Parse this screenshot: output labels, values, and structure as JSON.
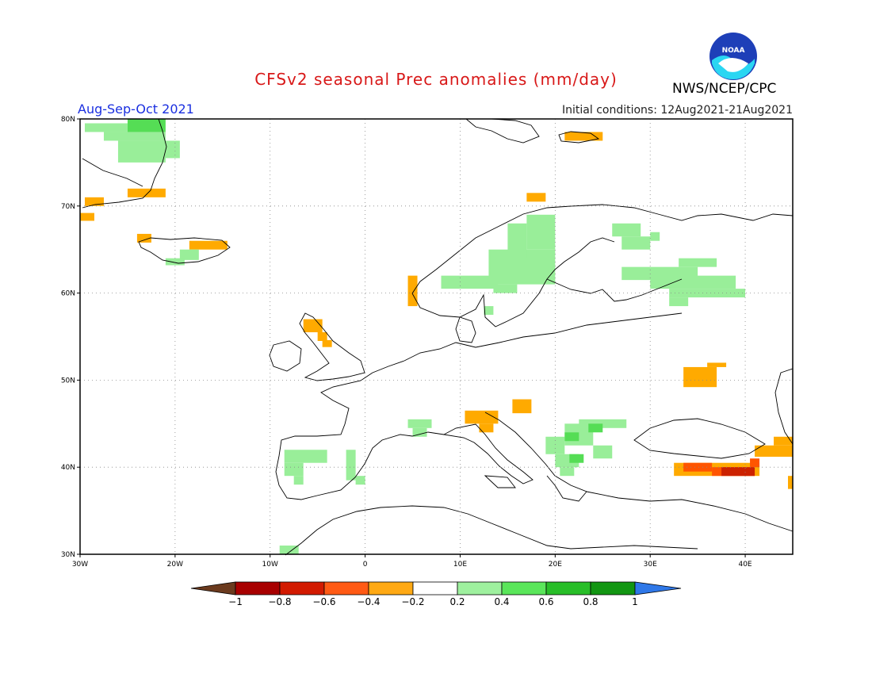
{
  "header": {
    "title": "CFSv2 seasonal Prec anomalies (mm/day)",
    "period": "Aug-Sep-Oct 2021",
    "initial_conditions": "Initial conditions: 12Aug2021-21Aug2021",
    "agency": "NWS/NCEP/CPC",
    "logo_text": "NOAA"
  },
  "map": {
    "projection": "lat-lon",
    "lon_range": [
      -30,
      45
    ],
    "lat_range": [
      30,
      80
    ],
    "lon_ticks": [
      {
        "value": -30,
        "label": "30W"
      },
      {
        "value": -20,
        "label": "20W"
      },
      {
        "value": -10,
        "label": "10W"
      },
      {
        "value": 0,
        "label": "0"
      },
      {
        "value": 10,
        "label": "10E"
      },
      {
        "value": 20,
        "label": "20E"
      },
      {
        "value": 30,
        "label": "30E"
      },
      {
        "value": 40,
        "label": "40E"
      }
    ],
    "lat_ticks": [
      {
        "value": 30,
        "label": "30N"
      },
      {
        "value": 40,
        "label": "40N"
      },
      {
        "value": 50,
        "label": "50N"
      },
      {
        "value": 60,
        "label": "60N"
      },
      {
        "value": 70,
        "label": "70N"
      },
      {
        "value": 80,
        "label": "80N"
      }
    ],
    "grid": "dotted",
    "anomaly_patches": [
      {
        "level": "+0.2",
        "color": "#99ee99",
        "lon": [
          -29.5,
          -25
        ],
        "lat": [
          78.5,
          79.5
        ]
      },
      {
        "level": "+0.4",
        "color": "#55dd55",
        "lon": [
          -25,
          -21
        ],
        "lat": [
          78.5,
          80
        ]
      },
      {
        "level": "+0.2",
        "color": "#99ee99",
        "lon": [
          -27.5,
          -21
        ],
        "lat": [
          77.5,
          78.5
        ]
      },
      {
        "level": "+0.2",
        "color": "#99ee99",
        "lon": [
          -26,
          -21
        ],
        "lat": [
          75,
          77.5
        ]
      },
      {
        "level": "+0.2",
        "color": "#99ee99",
        "lon": [
          -22,
          -19.5
        ],
        "lat": [
          75.5,
          77.5
        ]
      },
      {
        "level": "-0.2",
        "color": "#ffaa00",
        "lon": [
          -29.5,
          -27.5
        ],
        "lat": [
          70,
          71
        ]
      },
      {
        "level": "-0.2",
        "color": "#ffaa00",
        "lon": [
          -25,
          -21
        ],
        "lat": [
          71,
          72
        ]
      },
      {
        "level": "-0.2",
        "color": "#ffaa00",
        "lon": [
          -30,
          -28.5
        ],
        "lat": [
          68.3,
          69.2
        ]
      },
      {
        "level": "-0.2",
        "color": "#ffaa00",
        "lon": [
          -24,
          -22.5
        ],
        "lat": [
          65.8,
          66.8
        ]
      },
      {
        "level": "-0.2",
        "color": "#ffaa00",
        "lon": [
          -18.5,
          -14.5
        ],
        "lat": [
          65,
          66
        ]
      },
      {
        "level": "+0.2",
        "color": "#99ee99",
        "lon": [
          -19.5,
          -17.5
        ],
        "lat": [
          63.8,
          65
        ]
      },
      {
        "level": "+0.2",
        "color": "#99ee99",
        "lon": [
          -21,
          -19
        ],
        "lat": [
          63.2,
          64
        ]
      },
      {
        "level": "+0.2",
        "color": "#99ee99",
        "lon": [
          13,
          20
        ],
        "lat": [
          61,
          65
        ]
      },
      {
        "level": "+0.2",
        "color": "#99ee99",
        "lon": [
          17,
          20
        ],
        "lat": [
          65,
          69
        ]
      },
      {
        "level": "+0.2",
        "color": "#99ee99",
        "lon": [
          15,
          17
        ],
        "lat": [
          64,
          68
        ]
      },
      {
        "level": "+0.2",
        "color": "#99ee99",
        "lon": [
          8,
          14
        ],
        "lat": [
          60.5,
          62
        ]
      },
      {
        "level": "+0.2",
        "color": "#99ee99",
        "lon": [
          13.5,
          16
        ],
        "lat": [
          60,
          61
        ]
      },
      {
        "level": "+0.2",
        "color": "#99ee99",
        "lon": [
          12.5,
          13.5
        ],
        "lat": [
          57.5,
          58.5
        ]
      },
      {
        "level": "+0.2",
        "color": "#99ee99",
        "lon": [
          26,
          29
        ],
        "lat": [
          66.5,
          68
        ]
      },
      {
        "level": "+0.2",
        "color": "#99ee99",
        "lon": [
          27,
          30
        ],
        "lat": [
          65,
          66.5
        ]
      },
      {
        "level": "+0.2",
        "color": "#99ee99",
        "lon": [
          30,
          31
        ],
        "lat": [
          66,
          67
        ]
      },
      {
        "level": "+0.2",
        "color": "#99ee99",
        "lon": [
          27,
          35
        ],
        "lat": [
          61.5,
          63
        ]
      },
      {
        "level": "+0.2",
        "color": "#99ee99",
        "lon": [
          33,
          37
        ],
        "lat": [
          63,
          64
        ]
      },
      {
        "level": "+0.2",
        "color": "#99ee99",
        "lon": [
          30,
          39
        ],
        "lat": [
          60.5,
          62
        ]
      },
      {
        "level": "+0.2",
        "color": "#99ee99",
        "lon": [
          32,
          40
        ],
        "lat": [
          59.5,
          60.5
        ]
      },
      {
        "level": "+0.2",
        "color": "#99ee99",
        "lon": [
          32,
          34
        ],
        "lat": [
          58.5,
          59.5
        ]
      },
      {
        "level": "-0.2",
        "color": "#ffaa00",
        "lon": [
          4.5,
          5.5
        ],
        "lat": [
          58.5,
          62
        ]
      },
      {
        "level": "-0.2",
        "color": "#ffaa00",
        "lon": [
          -6.5,
          -4.5
        ],
        "lat": [
          55.5,
          57
        ]
      },
      {
        "level": "-0.2",
        "color": "#ffaa00",
        "lon": [
          -5,
          -4
        ],
        "lat": [
          54.5,
          55.5
        ]
      },
      {
        "level": "-0.2",
        "color": "#ffaa00",
        "lon": [
          -4.5,
          -3.5
        ],
        "lat": [
          53.8,
          54.6
        ]
      },
      {
        "level": "-0.2",
        "color": "#ffaa00",
        "lon": [
          17,
          19
        ],
        "lat": [
          70.5,
          71.5
        ]
      },
      {
        "level": "-0.2",
        "color": "#ffaa00",
        "lon": [
          21,
          25
        ],
        "lat": [
          77.5,
          78.5
        ]
      },
      {
        "level": "-0.2",
        "color": "#ffaa00",
        "lon": [
          33.5,
          37
        ],
        "lat": [
          49.2,
          51.5
        ]
      },
      {
        "level": "-0.2",
        "color": "#ffaa00",
        "lon": [
          36,
          38
        ],
        "lat": [
          51.5,
          52
        ]
      },
      {
        "level": "-0.2",
        "color": "#ffaa00",
        "lon": [
          10.5,
          14
        ],
        "lat": [
          45,
          46.5
        ]
      },
      {
        "level": "-0.2",
        "color": "#ffaa00",
        "lon": [
          12,
          13.5
        ],
        "lat": [
          44,
          45
        ]
      },
      {
        "level": "-0.2",
        "color": "#ffaa00",
        "lon": [
          15.5,
          17.5
        ],
        "lat": [
          46.2,
          47.8
        ]
      },
      {
        "level": "+0.2",
        "color": "#99ee99",
        "lon": [
          4.5,
          7
        ],
        "lat": [
          44.5,
          45.5
        ]
      },
      {
        "level": "+0.2",
        "color": "#99ee99",
        "lon": [
          5,
          6.5
        ],
        "lat": [
          43.5,
          44.5
        ]
      },
      {
        "level": "+0.2",
        "color": "#99ee99",
        "lon": [
          -8.5,
          -4
        ],
        "lat": [
          40.5,
          42
        ]
      },
      {
        "level": "+0.2",
        "color": "#99ee99",
        "lon": [
          -8.5,
          -6.5
        ],
        "lat": [
          39,
          40.5
        ]
      },
      {
        "level": "+0.2",
        "color": "#99ee99",
        "lon": [
          -7.5,
          -6.5
        ],
        "lat": [
          38,
          39
        ]
      },
      {
        "level": "+0.2",
        "color": "#99ee99",
        "lon": [
          -2,
          -1
        ],
        "lat": [
          38.5,
          42
        ]
      },
      {
        "level": "+0.2",
        "color": "#99ee99",
        "lon": [
          -1,
          0
        ],
        "lat": [
          38,
          39
        ]
      },
      {
        "level": "+0.2",
        "color": "#99ee99",
        "lon": [
          19,
          21
        ],
        "lat": [
          41.5,
          43.5
        ]
      },
      {
        "level": "+0.2",
        "color": "#99ee99",
        "lon": [
          21,
          24
        ],
        "lat": [
          42.5,
          45
        ]
      },
      {
        "level": "+0.2",
        "color": "#99ee99",
        "lon": [
          24,
          26
        ],
        "lat": [
          41,
          42.5
        ]
      },
      {
        "level": "+0.2",
        "color": "#99ee99",
        "lon": [
          20,
          22.5
        ],
        "lat": [
          40,
          41.5
        ]
      },
      {
        "level": "+0.2",
        "color": "#99ee99",
        "lon": [
          20.5,
          22
        ],
        "lat": [
          39,
          40
        ]
      },
      {
        "level": "+0.2",
        "color": "#99ee99",
        "lon": [
          22.5,
          27.5
        ],
        "lat": [
          44.5,
          45.5
        ]
      },
      {
        "level": "+0.4",
        "color": "#55dd55",
        "lon": [
          23.5,
          25
        ],
        "lat": [
          44,
          45
        ]
      },
      {
        "level": "+0.4",
        "color": "#55dd55",
        "lon": [
          21,
          22.5
        ],
        "lat": [
          43,
          44
        ]
      },
      {
        "level": "+0.4",
        "color": "#55dd55",
        "lon": [
          21.5,
          23
        ],
        "lat": [
          40.5,
          41.5
        ]
      },
      {
        "level": "-0.2",
        "color": "#ffaa00",
        "lon": [
          32.5,
          41.5
        ],
        "lat": [
          39,
          40.5
        ]
      },
      {
        "level": "-0.4",
        "color": "#ff5500",
        "lon": [
          33.5,
          36.5
        ],
        "lat": [
          39.5,
          40.5
        ]
      },
      {
        "level": "-0.4",
        "color": "#ff5500",
        "lon": [
          36.5,
          41
        ],
        "lat": [
          39,
          40
        ]
      },
      {
        "level": "-0.4",
        "color": "#ff5500",
        "lon": [
          40.5,
          41.5
        ],
        "lat": [
          40,
          41
        ]
      },
      {
        "level": "-0.6",
        "color": "#cc2200",
        "lon": [
          37.5,
          41
        ],
        "lat": [
          39,
          40
        ]
      },
      {
        "level": "-0.2",
        "color": "#ffaa00",
        "lon": [
          41,
          45
        ],
        "lat": [
          41.2,
          42.5
        ]
      },
      {
        "level": "-0.2",
        "color": "#ffaa00",
        "lon": [
          43,
          45
        ],
        "lat": [
          42.5,
          43.5
        ]
      },
      {
        "level": "-0.2",
        "color": "#ffaa00",
        "lon": [
          44.5,
          45
        ],
        "lat": [
          37.5,
          39
        ]
      },
      {
        "level": "+0.2",
        "color": "#99ee99",
        "lon": [
          -9,
          -7
        ],
        "lat": [
          30,
          31
        ]
      }
    ]
  },
  "colorbar": {
    "left_arrow_color": "#6b3a1e",
    "right_arrow_color": "#2f78e8",
    "bins": [
      {
        "from": -1.0,
        "to": -0.8,
        "color": "#a80000"
      },
      {
        "from": -0.8,
        "to": -0.6,
        "color": "#d21a00"
      },
      {
        "from": -0.6,
        "to": -0.4,
        "color": "#ff5a14"
      },
      {
        "from": -0.4,
        "to": -0.2,
        "color": "#ffa914"
      },
      {
        "from": -0.2,
        "to": 0.2,
        "color": "#ffffff"
      },
      {
        "from": 0.2,
        "to": 0.4,
        "color": "#9ef09e"
      },
      {
        "from": 0.4,
        "to": 0.6,
        "color": "#5ae65a"
      },
      {
        "from": 0.6,
        "to": 0.8,
        "color": "#28be28"
      },
      {
        "from": 0.8,
        "to": 1.0,
        "color": "#129612"
      }
    ],
    "labels": [
      "−1",
      "−0.8",
      "−0.6",
      "−0.4",
      "−0.2",
      "0.2",
      "0.4",
      "0.6",
      "0.8",
      "1"
    ]
  }
}
